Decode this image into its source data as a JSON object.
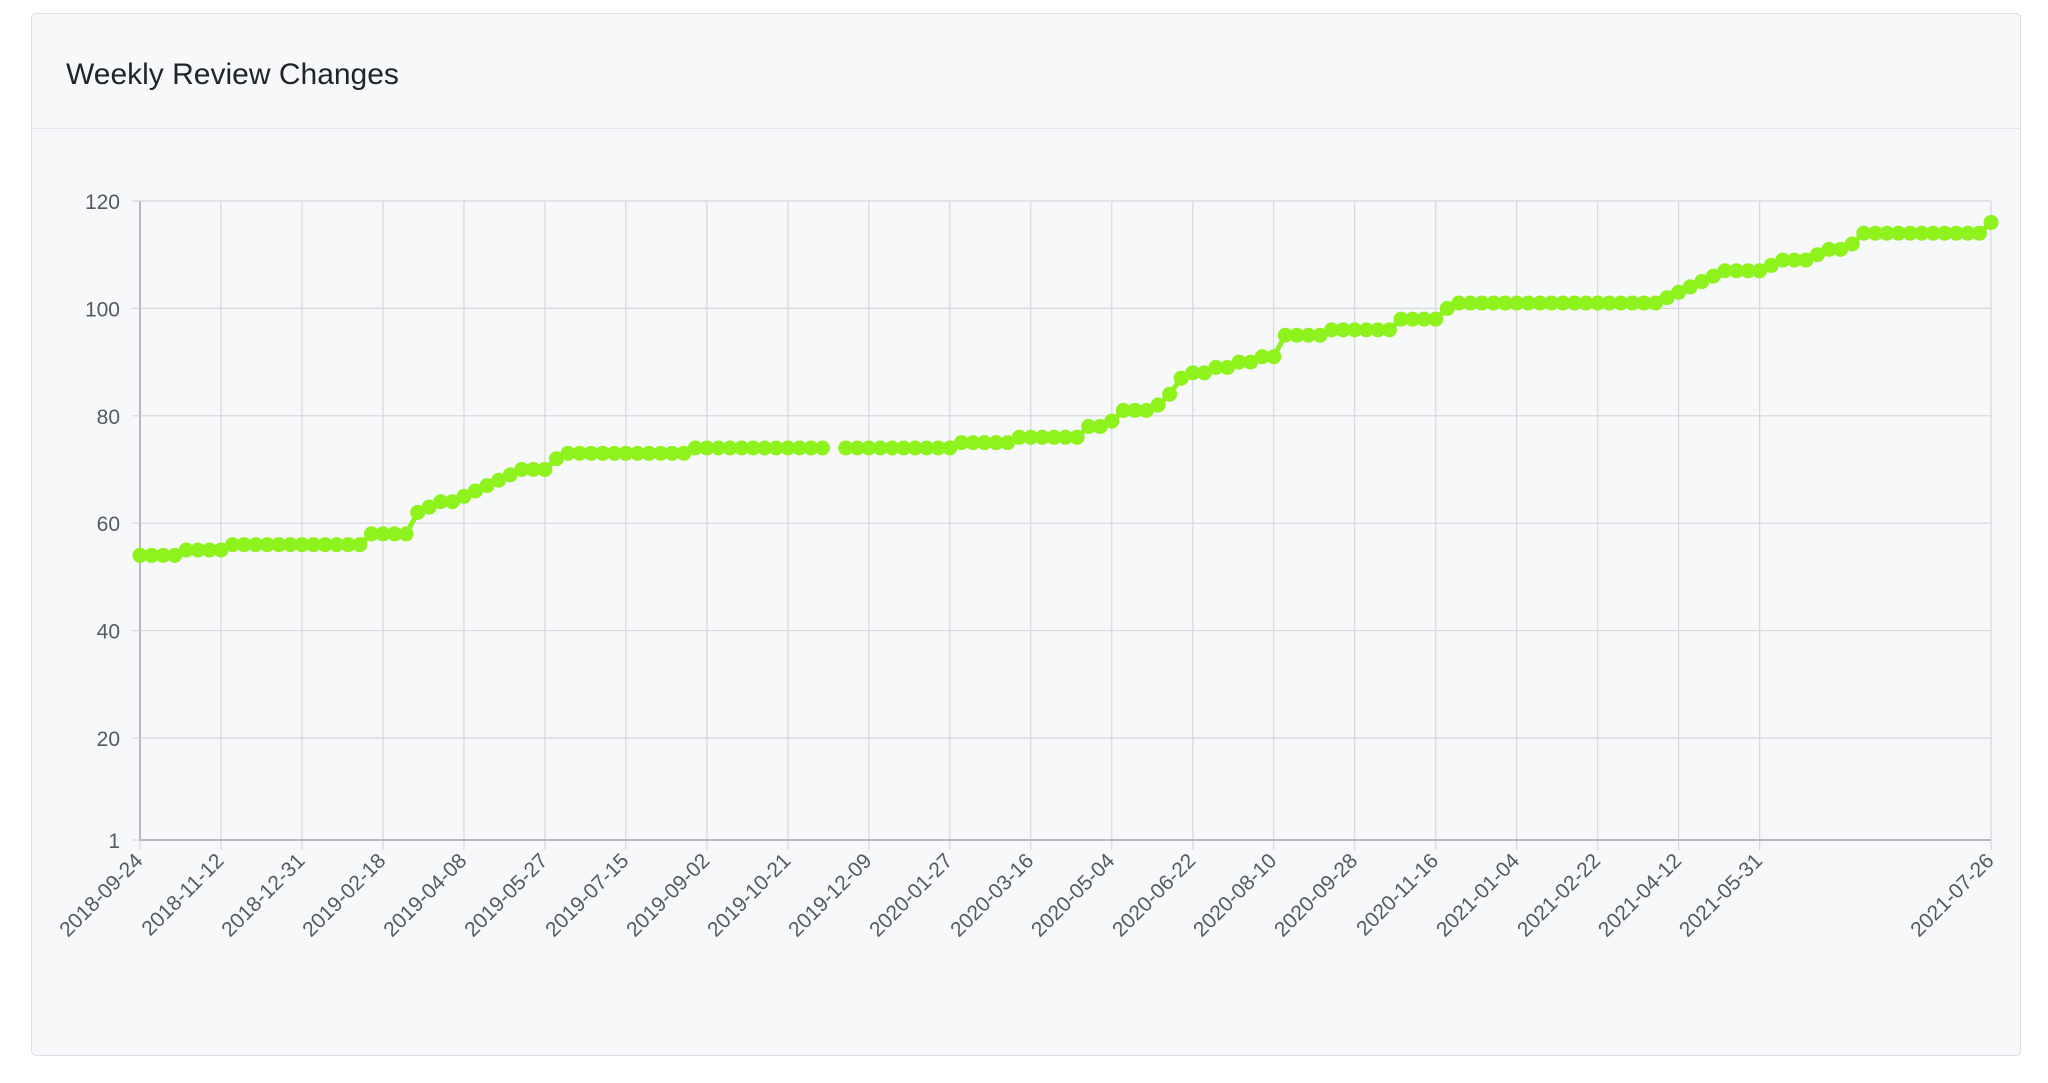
{
  "card": {
    "title": "Weekly Review Changes"
  },
  "colors": {
    "series": "#8ef21d",
    "grid": "#d6d8dc",
    "axis": "#b5b8bd",
    "tick_text": "#555a60"
  },
  "chart_data": {
    "type": "line",
    "title": "Weekly Review Changes",
    "xlabel": "",
    "ylabel": "",
    "grid": true,
    "legend": "none",
    "x_tick_labels": [
      "2018-09-24",
      "2018-11-12",
      "2018-12-31",
      "2019-02-18",
      "2019-04-08",
      "2019-05-27",
      "2019-07-15",
      "2019-09-02",
      "2019-10-21",
      "2019-12-09",
      "2020-01-27",
      "2020-03-16",
      "2020-05-04",
      "2020-06-22",
      "2020-08-10",
      "2020-09-28",
      "2020-11-16",
      "2021-01-04",
      "2021-02-22",
      "2021-04-12",
      "2021-05-31",
      "2021-07-26"
    ],
    "y_ticks": [
      1,
      20,
      40,
      60,
      80,
      100,
      120
    ],
    "ylim": [
      1,
      120
    ],
    "xlim": [
      "2018-09-24",
      "2021-07-26"
    ],
    "series": [
      {
        "color": "#8ef21d",
        "values": [
          54,
          54,
          54,
          54,
          55,
          55,
          55,
          55,
          56,
          56,
          56,
          56,
          56,
          56,
          56,
          56,
          56,
          56,
          56,
          56,
          58,
          58,
          58,
          58,
          62,
          63,
          64,
          64,
          65,
          66,
          67,
          68,
          69,
          70,
          70,
          70,
          72,
          73,
          73,
          73,
          73,
          73,
          73,
          73,
          73,
          73,
          73,
          73,
          74,
          74,
          74,
          74,
          74,
          74,
          74,
          74,
          74,
          74,
          74,
          74,
          null,
          74,
          74,
          74,
          74,
          74,
          74,
          74,
          74,
          74,
          74,
          75,
          75,
          75,
          75,
          75,
          76,
          76,
          76,
          76,
          76,
          76,
          78,
          78,
          79,
          81,
          81,
          81,
          82,
          84,
          87,
          88,
          88,
          89,
          89,
          90,
          90,
          91,
          91,
          95,
          95,
          95,
          95,
          96,
          96,
          96,
          96,
          96,
          96,
          98,
          98,
          98,
          98,
          100,
          101,
          101,
          101,
          101,
          101,
          101,
          101,
          101,
          101,
          101,
          101,
          101,
          101,
          101,
          101,
          101,
          101,
          101,
          102,
          103,
          104,
          105,
          106,
          107,
          107,
          107,
          107,
          108,
          109,
          109,
          109,
          110,
          111,
          111,
          112,
          114,
          114,
          114,
          114,
          114,
          114,
          114,
          114,
          114,
          114,
          114,
          116
        ]
      }
    ]
  }
}
